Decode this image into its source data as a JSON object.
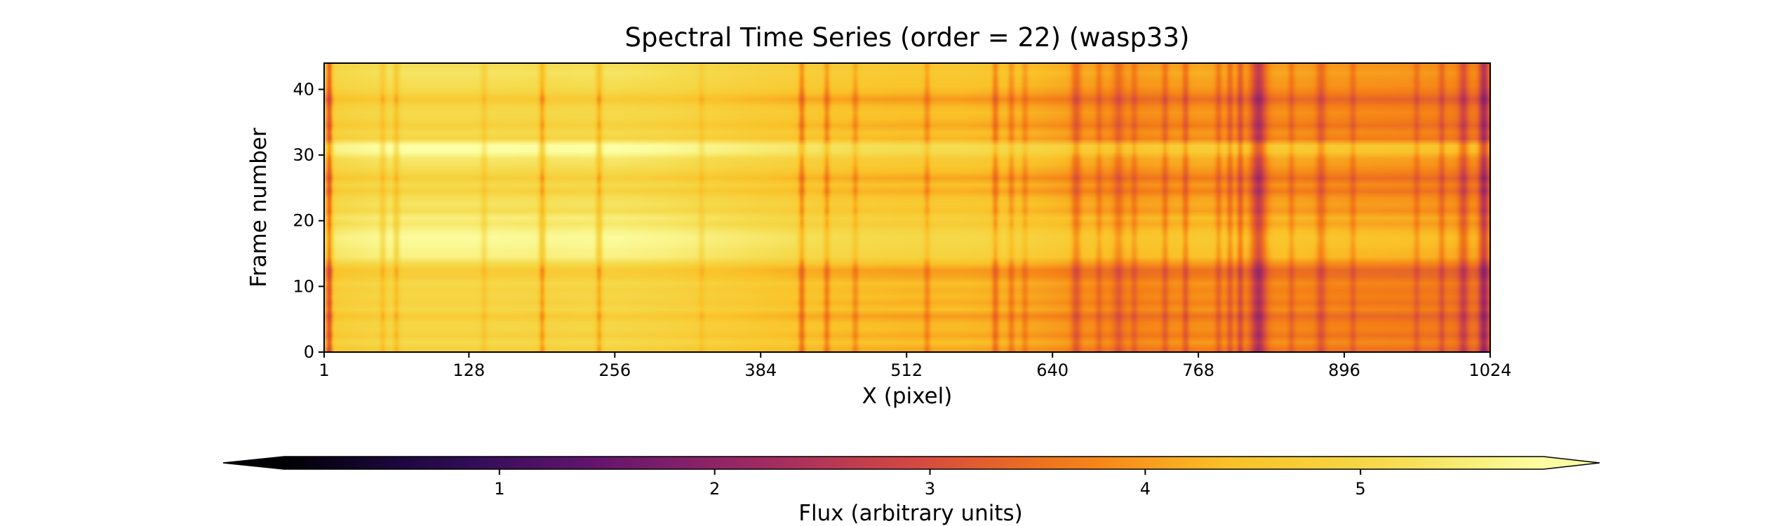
{
  "chart_data": {
    "type": "heatmap",
    "title": "Spectral Time Series (order = 22) (wasp33)",
    "xlabel": "X (pixel)",
    "ylabel": "Frame number",
    "xlim": [
      1,
      1024
    ],
    "ylim": [
      0,
      44
    ],
    "x_ticks": [
      1,
      128,
      256,
      384,
      512,
      640,
      768,
      896,
      1024
    ],
    "y_ticks": [
      0,
      10,
      20,
      30,
      40
    ],
    "n_frames": 44,
    "n_pixels": 1024,
    "colormap": "inferno",
    "colorbar": {
      "label": "Flux (arbitrary units)",
      "range": [
        0,
        5.85
      ],
      "ticks": [
        1,
        2,
        3,
        4,
        5
      ],
      "extend": "both",
      "orientation": "horizontal",
      "location": "bottom"
    },
    "continuum_profile": [
      [
        1,
        5.0
      ],
      [
        60,
        5.3
      ],
      [
        128,
        5.3
      ],
      [
        200,
        5.25
      ],
      [
        256,
        5.3
      ],
      [
        300,
        5.2
      ],
      [
        384,
        4.9
      ],
      [
        450,
        4.7
      ],
      [
        512,
        4.6
      ],
      [
        560,
        4.6
      ],
      [
        600,
        4.5
      ],
      [
        640,
        4.3
      ],
      [
        700,
        4.0
      ],
      [
        768,
        4.15
      ],
      [
        820,
        4.1
      ],
      [
        896,
        4.0
      ],
      [
        960,
        3.95
      ],
      [
        1024,
        3.8
      ]
    ],
    "absorption_lines": [
      {
        "x": 5,
        "depth": 1.6,
        "width": 2
      },
      {
        "x": 52,
        "depth": 0.5,
        "width": 2
      },
      {
        "x": 64,
        "depth": 0.6,
        "width": 2
      },
      {
        "x": 141,
        "depth": 0.4,
        "width": 2
      },
      {
        "x": 192,
        "depth": 0.9,
        "width": 2
      },
      {
        "x": 242,
        "depth": 0.8,
        "width": 2
      },
      {
        "x": 332,
        "depth": 0.3,
        "width": 2
      },
      {
        "x": 420,
        "depth": 0.9,
        "width": 2
      },
      {
        "x": 442,
        "depth": 0.7,
        "width": 2
      },
      {
        "x": 467,
        "depth": 0.5,
        "width": 2
      },
      {
        "x": 530,
        "depth": 0.5,
        "width": 2
      },
      {
        "x": 590,
        "depth": 0.7,
        "width": 2
      },
      {
        "x": 604,
        "depth": 0.5,
        "width": 2
      },
      {
        "x": 616,
        "depth": 0.4,
        "width": 2
      },
      {
        "x": 661,
        "depth": 0.7,
        "width": 3
      },
      {
        "x": 681,
        "depth": 0.4,
        "width": 2
      },
      {
        "x": 698,
        "depth": 0.5,
        "width": 3
      },
      {
        "x": 712,
        "depth": 0.4,
        "width": 2
      },
      {
        "x": 739,
        "depth": 0.5,
        "width": 2
      },
      {
        "x": 757,
        "depth": 0.6,
        "width": 2
      },
      {
        "x": 786,
        "depth": 0.5,
        "width": 2
      },
      {
        "x": 796,
        "depth": 0.6,
        "width": 2
      },
      {
        "x": 805,
        "depth": 0.8,
        "width": 2
      },
      {
        "x": 821,
        "depth": 1.4,
        "width": 5
      },
      {
        "x": 850,
        "depth": 0.4,
        "width": 2
      },
      {
        "x": 876,
        "depth": 0.6,
        "width": 3
      },
      {
        "x": 904,
        "depth": 0.4,
        "width": 2
      },
      {
        "x": 960,
        "depth": 0.4,
        "width": 2
      },
      {
        "x": 982,
        "depth": 0.5,
        "width": 2
      },
      {
        "x": 1001,
        "depth": 0.8,
        "width": 3
      },
      {
        "x": 1019,
        "depth": 1.3,
        "width": 3
      }
    ],
    "frame_offsets": [
      -0.45,
      -0.15,
      -0.45,
      -0.25,
      -0.3,
      -0.6,
      -0.2,
      -0.4,
      -0.25,
      -0.35,
      -0.2,
      -0.5,
      -0.6,
      -0.15,
      0.3,
      0.35,
      0.45,
      0.5,
      0.35,
      0.1,
      0.25,
      -0.1,
      0.05,
      -0.05,
      -0.4,
      -0.15,
      -0.5,
      -0.2,
      0.0,
      0.1,
      0.55,
      0.6,
      -0.3,
      -0.15,
      -0.45,
      -0.25,
      -0.15,
      -0.3,
      -0.65,
      -0.3,
      -0.1,
      -0.05,
      0.05,
      -0.05
    ]
  }
}
